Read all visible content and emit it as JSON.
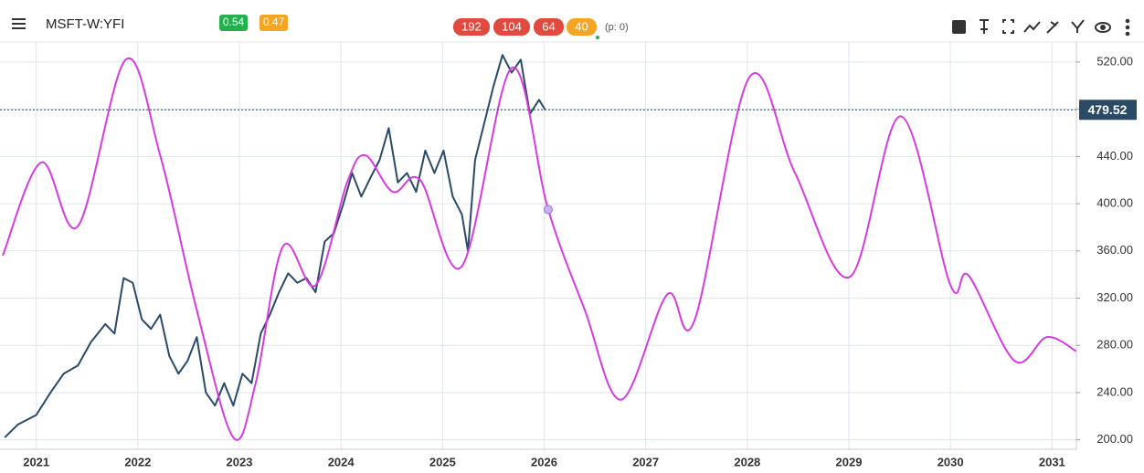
{
  "toolbar": {
    "symbol": "MSFT-W:YFI",
    "badges_left": [
      "0.54",
      "0.47"
    ],
    "badges_center": [
      "192",
      "104",
      "64",
      "40"
    ],
    "note": "(p: 0)"
  },
  "chart_data": {
    "type": "line",
    "xlim": [
      2020.67,
      2031.24
    ],
    "xticks": [
      2021,
      2022,
      2023,
      2024,
      2025,
      2026,
      2027,
      2028,
      2029,
      2030,
      2031
    ],
    "ylim": [
      192,
      530
    ],
    "yticks": [
      {
        "value": 200,
        "label": "200.00"
      },
      {
        "value": 240,
        "label": "240.00"
      },
      {
        "value": 280,
        "label": "280.00"
      },
      {
        "value": 320,
        "label": "320.00"
      },
      {
        "value": 360,
        "label": "360.00"
      },
      {
        "value": 400,
        "label": "400.00"
      },
      {
        "value": 440,
        "label": "440.00"
      },
      {
        "value": 480,
        "label": "480.00"
      },
      {
        "value": 520,
        "label": "520.00"
      }
    ],
    "grid": true,
    "last_price": 479.52,
    "series": [
      {
        "color": "#2a4a66",
        "smooth": false,
        "x": [
          2020.69,
          2020.82,
          2021.0,
          2021.14,
          2021.27,
          2021.41,
          2021.54,
          2021.68,
          2021.77,
          2021.86,
          2021.95,
          2022.04,
          2022.13,
          2022.22,
          2022.31,
          2022.4,
          2022.49,
          2022.58,
          2022.67,
          2022.76,
          2022.85,
          2022.94,
          2023.03,
          2023.12,
          2023.21,
          2023.3,
          2023.39,
          2023.48,
          2023.57,
          2023.66,
          2023.75,
          2023.84,
          2023.93,
          2024.02,
          2024.11,
          2024.2,
          2024.29,
          2024.38,
          2024.47,
          2024.56,
          2024.65,
          2024.74,
          2024.83,
          2024.92,
          2025.01,
          2025.1,
          2025.19,
          2025.25,
          2025.32,
          2025.41,
          2025.5,
          2025.59,
          2025.68,
          2025.77,
          2025.86,
          2025.95,
          2026.01
        ],
        "values": [
          202,
          213,
          221,
          240,
          256,
          263,
          283,
          298,
          290,
          337,
          333,
          302,
          294,
          306,
          271,
          256,
          267,
          287,
          240,
          229,
          248,
          229,
          256,
          248,
          290,
          306,
          325,
          341,
          333,
          337,
          325,
          368,
          375,
          399,
          426,
          406,
          422,
          437,
          464,
          418,
          426,
          410,
          445,
          426,
          445,
          406,
          391,
          360,
          437,
          468,
          499,
          526,
          511,
          522,
          476,
          488,
          479.52
        ]
      },
      {
        "color": "#d63be0",
        "smooth": true,
        "x": [
          2020.67,
          2021.05,
          2021.41,
          2021.88,
          2022.22,
          2022.58,
          2022.94,
          2023.16,
          2023.43,
          2023.75,
          2024.06,
          2024.24,
          2024.51,
          2024.78,
          2025.19,
          2025.68,
          2026.04,
          2026.4,
          2026.76,
          2027.21,
          2027.48,
          2028.02,
          2028.47,
          2029.01,
          2029.51,
          2030.0,
          2030.18,
          2030.63,
          2030.95,
          2031.24
        ],
        "values": [
          356,
          435,
          381,
          522,
          441,
          310,
          202,
          248,
          364,
          331,
          418,
          441,
          410,
          420,
          347,
          515,
          395,
          310,
          234,
          323,
          301,
          507,
          426,
          338,
          474,
          331,
          339,
          267,
          287,
          275
        ],
        "highlight": 16
      }
    ]
  }
}
